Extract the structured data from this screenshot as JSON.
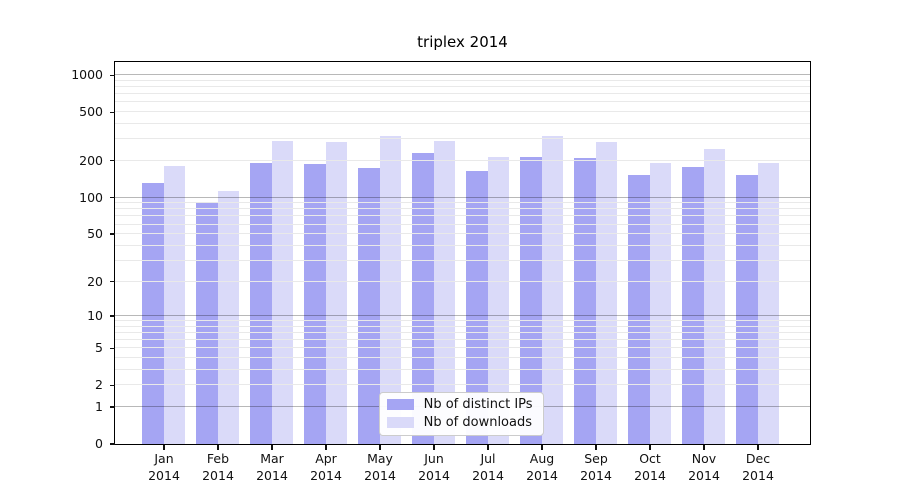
{
  "chart_data": {
    "type": "bar",
    "title": "triplex 2014",
    "categories": [
      "Jan",
      "Feb",
      "Mar",
      "Apr",
      "May",
      "Jun",
      "Jul",
      "Aug",
      "Sep",
      "Oct",
      "Nov",
      "Dec"
    ],
    "x_year": "2014",
    "series": [
      {
        "name": "Nb of distinct IPs",
        "color": "#a5a5f3",
        "values": [
          132,
          89,
          191,
          186,
          173,
          232,
          163,
          214,
          208,
          151,
          178,
          152
        ]
      },
      {
        "name": "Nb of downloads",
        "color": "#dadaf9",
        "values": [
          179,
          112,
          287,
          284,
          315,
          290,
          215,
          319,
          282,
          192,
          247,
          192
        ]
      }
    ],
    "y_scale": "log1p",
    "y_max": 1280,
    "y_ticks": [
      0,
      1,
      2,
      5,
      10,
      20,
      50,
      100,
      200,
      500,
      1000
    ],
    "gridlines_major": [
      1,
      10,
      100,
      1000
    ],
    "gridlines_minor": [
      2,
      3,
      4,
      5,
      6,
      7,
      8,
      9,
      20,
      30,
      40,
      50,
      60,
      70,
      80,
      90,
      200,
      300,
      400,
      500,
      600,
      700,
      800,
      900
    ],
    "grid": true,
    "legend_position": "bottom-center",
    "colors": {
      "background": "#ffffff",
      "spine": "#000000",
      "grid_major": "rgba(0,0,0,0.28)",
      "grid_minor": "#e9e9e9",
      "text": "#111111"
    }
  }
}
